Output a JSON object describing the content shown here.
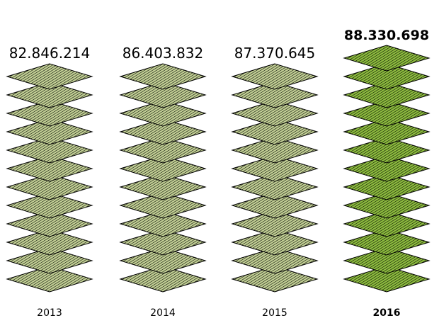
{
  "chart_data": {
    "type": "bar",
    "categories": [
      "2013",
      "2014",
      "2015",
      "2016"
    ],
    "value_labels": [
      "82.846.214",
      "86.403.832",
      "87.370.645",
      "88.330.698"
    ],
    "values": [
      82846214,
      86403832,
      87370645,
      88330698
    ],
    "highlight_index": 3,
    "ylim": [
      0,
      90000000
    ],
    "grid": false,
    "legend": "none",
    "colors": {
      "fill": "#c4d296",
      "fill_highlight": "#8fbf3f",
      "hatch": "#000000"
    }
  }
}
